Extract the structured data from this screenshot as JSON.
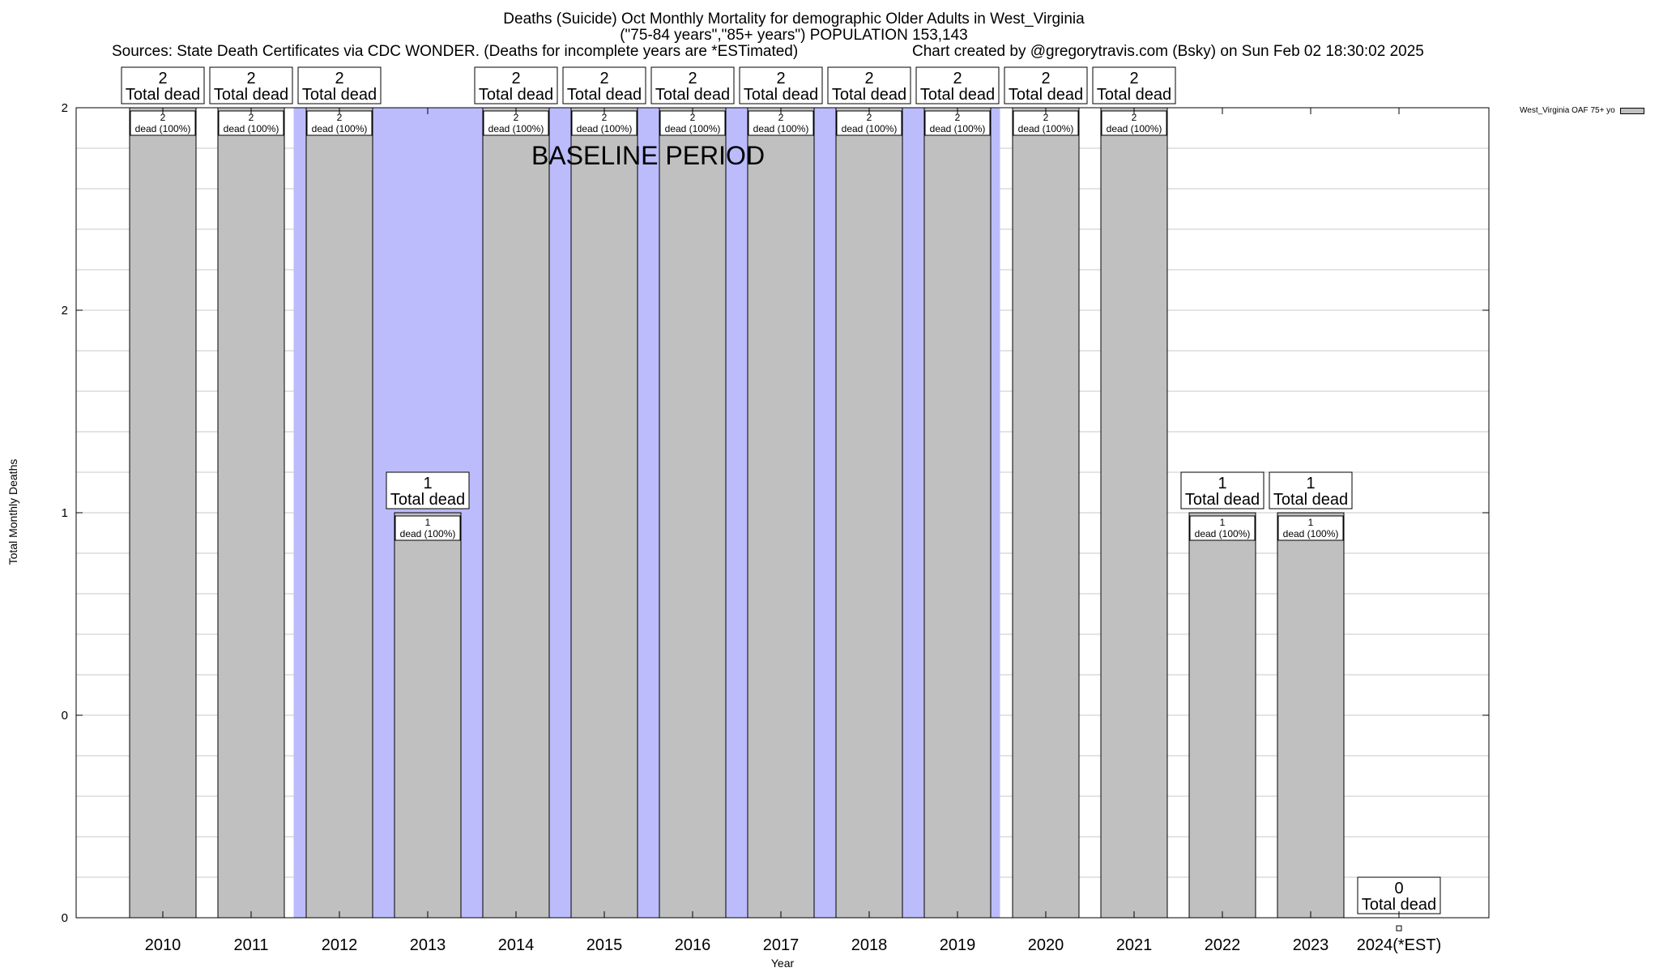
{
  "header": {
    "title": "Deaths (Suicide) Oct Monthly Mortality for demographic Older Adults in West_Virginia",
    "subtitle": "(\"75-84 years\",\"85+ years\") POPULATION 153,143",
    "sources": "Sources: State Death Certificates via CDC WONDER. (Deaths for incomplete years are *ESTimated)",
    "credit": "Chart created by @gregorytravis.com (Bsky) on Sun Feb 02 18:30:02 2025"
  },
  "chart_data": {
    "type": "bar",
    "xlabel": "Year",
    "ylabel": "Total Monthly Deaths",
    "ytick_labels": [
      "0",
      "0",
      "1",
      "2",
      "2"
    ],
    "grid": true,
    "legend_position": "top-right",
    "categories": [
      "2010",
      "2011",
      "2012",
      "2013",
      "2014",
      "2015",
      "2016",
      "2017",
      "2018",
      "2019",
      "2020",
      "2021",
      "2022",
      "2023",
      "2024(*EST)"
    ],
    "series": [
      {
        "name": "West_Virginia OAF 75+ yo",
        "color": "#c0c0c0",
        "values": [
          2,
          2,
          2,
          1,
          2,
          2,
          2,
          2,
          2,
          2,
          2,
          2,
          1,
          1,
          0
        ]
      }
    ],
    "total_labels": [
      "2\nTotal dead",
      "2\nTotal dead",
      "2\nTotal dead",
      "1\nTotal dead",
      "2\nTotal dead",
      "2\nTotal dead",
      "2\nTotal dead",
      "2\nTotal dead",
      "2\nTotal dead",
      "2\nTotal dead",
      "2\nTotal dead",
      "2\nTotal dead",
      "1\nTotal dead",
      "1\nTotal dead",
      "0\nTotal dead"
    ],
    "inner_labels": [
      "2\ndead (100%)",
      "2\ndead (100%)",
      "2\ndead (100%)",
      "1\ndead (100%)",
      "2\ndead (100%)",
      "2\ndead (100%)",
      "2\ndead (100%)",
      "2\ndead (100%)",
      "2\ndead (100%)",
      "2\ndead (100%)",
      "2\ndead (100%)",
      "2\ndead (100%)",
      "1\ndead (100%)",
      "1\ndead (100%)",
      ""
    ],
    "baseline": {
      "label": "BASELINE PERIOD",
      "start": "2012",
      "end": "2019",
      "color": "#bcbcfc"
    }
  }
}
